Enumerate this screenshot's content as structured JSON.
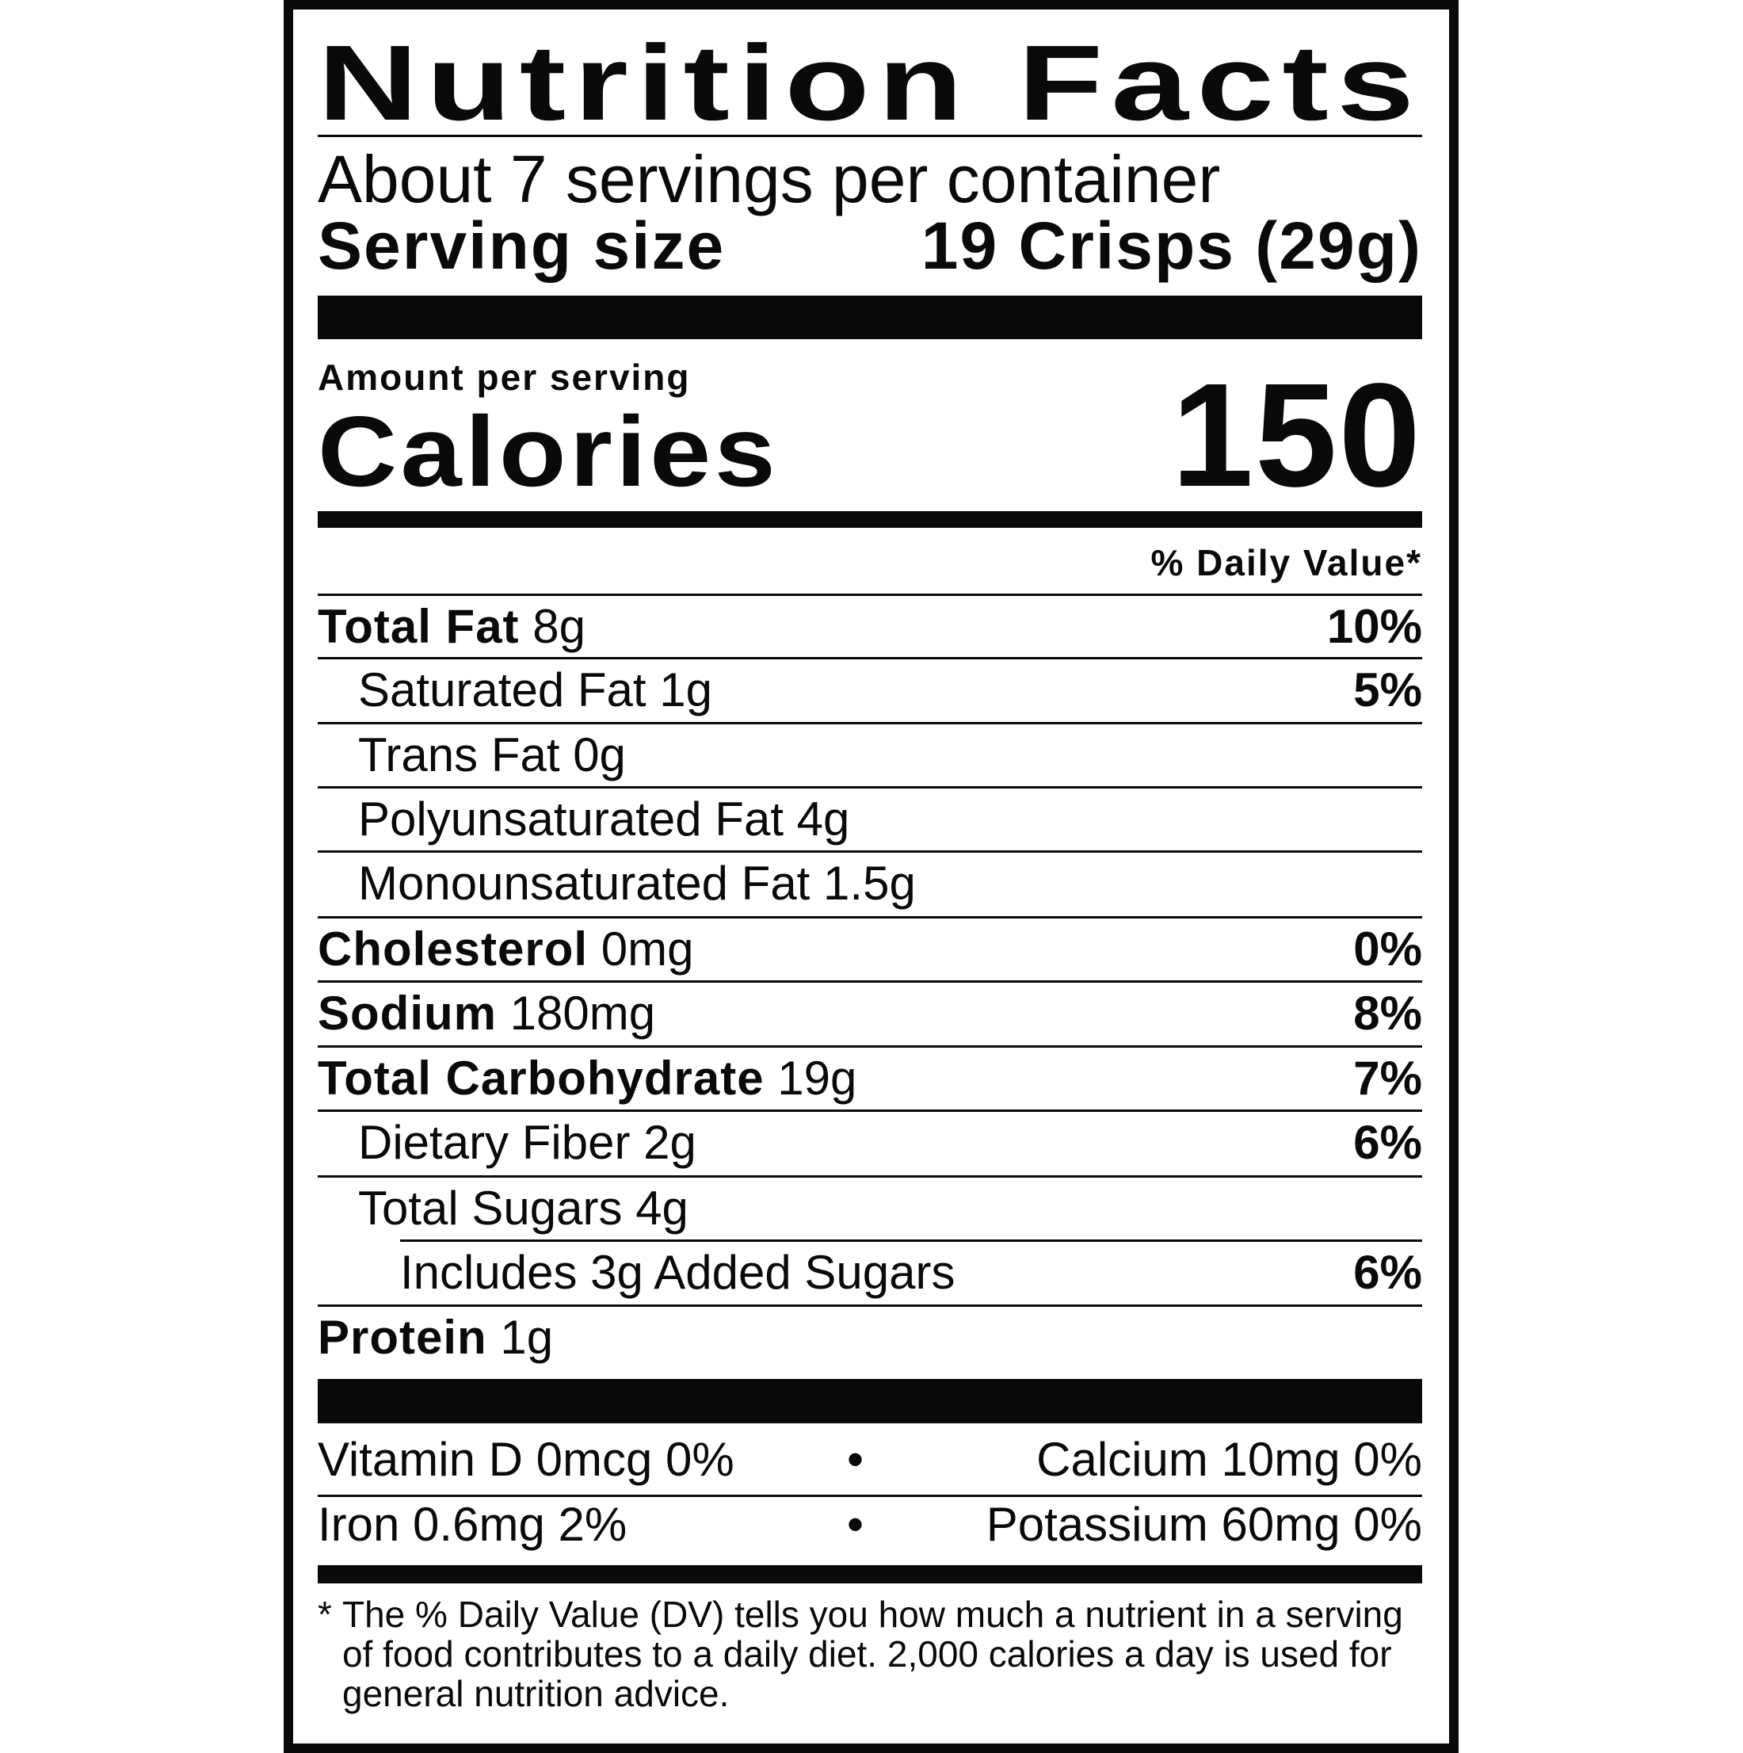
{
  "title": "Nutrition Facts",
  "servings_per_container": "About 7 servings per container",
  "serving_size": {
    "label": "Serving size",
    "value": "19 Crisps (29g)"
  },
  "amount_per_serving": "Amount per serving",
  "calories": {
    "label": "Calories",
    "value": "150"
  },
  "daily_value_header": "% Daily Value*",
  "nutrients": [
    {
      "label": "Total Fat",
      "amount": "8g",
      "dv": "10%"
    },
    {
      "label": "Saturated Fat",
      "amount": "1g",
      "dv": "5%"
    },
    {
      "label": "Trans Fat",
      "amount": "0g",
      "dv": ""
    },
    {
      "label": "Polyunsaturated Fat",
      "amount": "4g",
      "dv": ""
    },
    {
      "label": "Monounsaturated Fat",
      "amount": "1.5g",
      "dv": ""
    },
    {
      "label": "Cholesterol",
      "amount": "0mg",
      "dv": "0%"
    },
    {
      "label": "Sodium",
      "amount": "180mg",
      "dv": "8%"
    },
    {
      "label": "Total Carbohydrate",
      "amount": "19g",
      "dv": "7%"
    },
    {
      "label": "Dietary Fiber",
      "amount": "2g",
      "dv": "6%"
    },
    {
      "label": "Total Sugars",
      "amount": "4g",
      "dv": ""
    },
    {
      "label": "Includes 3g Added Sugars",
      "amount": "",
      "dv": "6%"
    },
    {
      "label": "Protein",
      "amount": "1g",
      "dv": ""
    }
  ],
  "vitamins": [
    {
      "left": "Vitamin D 0mcg 0%",
      "right": "Calcium 10mg 0%"
    },
    {
      "left": "Iron 0.6mg 2%",
      "right": "Potassium 60mg 0%"
    }
  ],
  "bullet": "•",
  "footnote": {
    "star": "*",
    "text": "The % Daily Value (DV) tells you how much a nutrient in a serving of food contributes to a daily diet. 2,000 calories a day is used for general nutrition advice."
  }
}
